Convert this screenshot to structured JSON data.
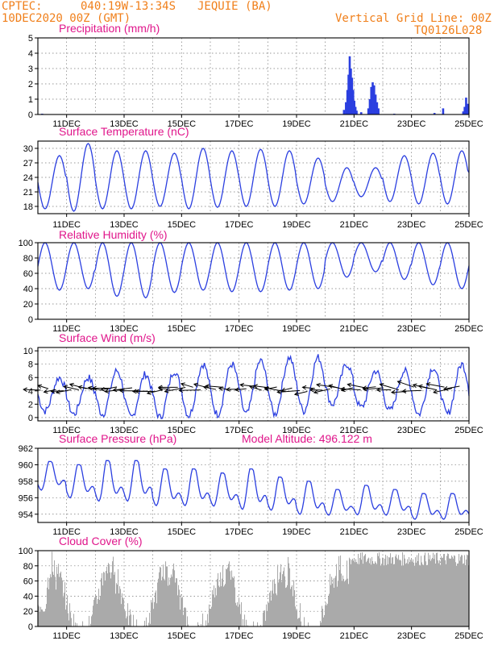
{
  "header": {
    "org": "CPTEC:",
    "coords": "040:19W-13:34S",
    "station": "JEQUIE (BA)",
    "run": "10DEC2020 00Z (GMT)",
    "grid_note": "Vertical Grid Line: 00Z",
    "code": "TQ0126L028"
  },
  "x_ticks": [
    "11DEC",
    "13DEC",
    "15DEC",
    "17DEC",
    "19DEC",
    "21DEC",
    "23DEC",
    "25DEC"
  ],
  "colors": {
    "line": "#2b3fe0",
    "cloud": "#aaaaaa",
    "title": "#e0168b",
    "header": "#f07f1a"
  },
  "chart_data": [
    {
      "type": "bar",
      "title": "Precipitation (mm/h)",
      "ylim": [
        0,
        5
      ],
      "yticks": [
        0,
        1,
        2,
        3,
        4,
        5
      ],
      "events": [
        {
          "t": 10.15,
          "v": 0.05
        },
        {
          "t": 13.0,
          "v": 0.03
        },
        {
          "t": 20.65,
          "v": 0.3
        },
        {
          "t": 20.72,
          "v": 0.8
        },
        {
          "t": 20.77,
          "v": 1.6
        },
        {
          "t": 20.81,
          "v": 2.6
        },
        {
          "t": 20.85,
          "v": 3.8
        },
        {
          "t": 20.89,
          "v": 3.0
        },
        {
          "t": 20.93,
          "v": 2.4
        },
        {
          "t": 20.97,
          "v": 1.6
        },
        {
          "t": 21.01,
          "v": 0.9
        },
        {
          "t": 21.05,
          "v": 0.5
        },
        {
          "t": 21.09,
          "v": 0.25
        },
        {
          "t": 21.25,
          "v": 0.15
        },
        {
          "t": 21.5,
          "v": 0.4
        },
        {
          "t": 21.55,
          "v": 1.0
        },
        {
          "t": 21.6,
          "v": 1.8
        },
        {
          "t": 21.65,
          "v": 2.1
        },
        {
          "t": 21.7,
          "v": 1.9
        },
        {
          "t": 21.75,
          "v": 1.3
        },
        {
          "t": 21.8,
          "v": 0.8
        },
        {
          "t": 21.85,
          "v": 0.4
        },
        {
          "t": 22.4,
          "v": 0.05
        },
        {
          "t": 23.8,
          "v": 0.1
        },
        {
          "t": 24.1,
          "v": 0.4
        },
        {
          "t": 24.8,
          "v": 0.2
        },
        {
          "t": 24.85,
          "v": 0.5
        },
        {
          "t": 24.9,
          "v": 1.1
        },
        {
          "t": 24.95,
          "v": 0.7
        }
      ]
    },
    {
      "type": "line",
      "title": "Surface Temperature (nC)",
      "ylim": [
        16.5,
        31.5
      ],
      "yticks": [
        18,
        21,
        24,
        27,
        30
      ],
      "max": [
        28.5,
        31,
        29.5,
        29.5,
        29,
        30,
        29.5,
        29.8,
        29.5,
        28,
        26,
        26,
        28.5,
        29,
        29.5,
        29
      ],
      "min": [
        17.5,
        17,
        17.5,
        17.5,
        18,
        17.5,
        17.8,
        18,
        18,
        18.5,
        19,
        20,
        19,
        18.5,
        18.5,
        21
      ]
    },
    {
      "type": "line",
      "title": "Relative Humidity (%)",
      "ylim": [
        0,
        100
      ],
      "yticks": [
        0,
        20,
        40,
        60,
        80,
        100
      ],
      "max": [
        100,
        100,
        100,
        100,
        100,
        100,
        100,
        100,
        100,
        100,
        100,
        100,
        100,
        100,
        100,
        95
      ],
      "min": [
        38,
        40,
        30,
        28,
        35,
        38,
        36,
        36,
        38,
        40,
        55,
        62,
        52,
        45,
        40,
        45
      ]
    },
    {
      "type": "line",
      "title": "Surface Wind (m/s)",
      "ylim": [
        -0.5,
        10.5
      ],
      "yticks": [
        0,
        2,
        4,
        6,
        8,
        10
      ],
      "max": [
        6,
        6,
        7,
        6.5,
        7,
        8,
        8,
        8.5,
        9,
        9,
        8,
        7,
        7,
        7.5,
        8,
        6.5
      ],
      "min": [
        1,
        0.5,
        0.5,
        0,
        0,
        0.3,
        0.5,
        0.5,
        0.5,
        1,
        2,
        1.5,
        1,
        0.5,
        0.5,
        1
      ],
      "arrows_note": "wind vectors along 4-5 m/s"
    },
    {
      "type": "line",
      "title": "Surface Pressure (hPa)",
      "annotation": "Model Altitude: 496.122 m",
      "ylim": [
        953,
        962
      ],
      "yticks": [
        954,
        956,
        958,
        960,
        962
      ],
      "max": [
        960.4,
        960,
        960.5,
        960.5,
        959.5,
        959.5,
        959,
        959.5,
        958.5,
        958,
        957,
        957.5,
        957,
        956.5,
        956.5,
        956.5
      ],
      "min": [
        956.5,
        955.5,
        955,
        955,
        954.5,
        954.5,
        954.5,
        954,
        954,
        953.5,
        953.5,
        953.5,
        953.5,
        953,
        953,
        953
      ]
    },
    {
      "type": "area",
      "title": "Cloud Cover (%)",
      "ylim": [
        0,
        100
      ],
      "yticks": [
        0,
        20,
        40,
        60,
        80,
        100
      ]
    }
  ]
}
